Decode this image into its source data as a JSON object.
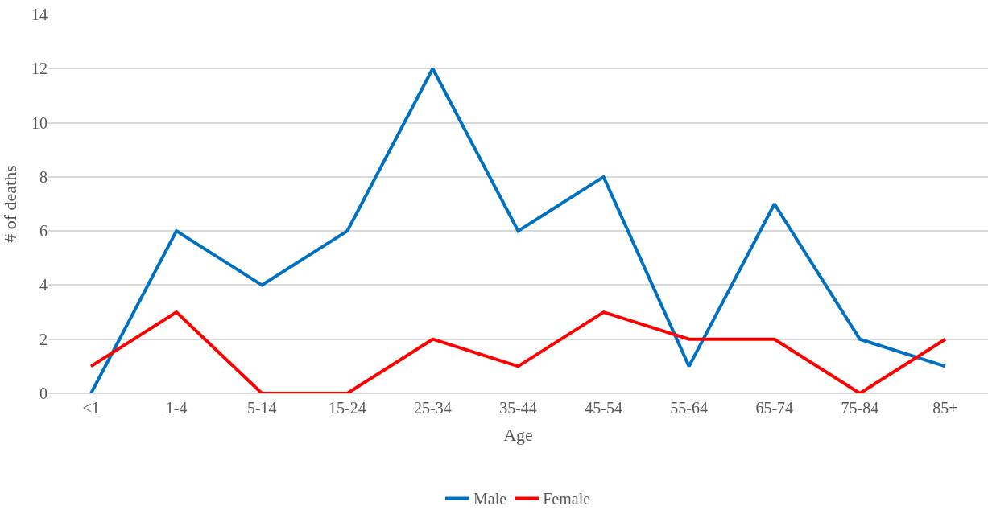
{
  "chart_data": {
    "type": "line",
    "xlabel": "Age",
    "ylabel": "# of deaths",
    "categories": [
      "<1",
      "1-4",
      "5-14",
      "15-24",
      "25-34",
      "35-44",
      "45-54",
      "55-64",
      "65-74",
      "75-84",
      "85+"
    ],
    "series": [
      {
        "name": "Male",
        "color": "#0070c0",
        "values": [
          0,
          6,
          4,
          6,
          12,
          6,
          8,
          1,
          7,
          2,
          1
        ]
      },
      {
        "name": "Female",
        "color": "#ff0000",
        "values": [
          1,
          3,
          0,
          0,
          2,
          1,
          3,
          2,
          2,
          0,
          2
        ]
      }
    ],
    "ylim": [
      0,
      14
    ],
    "yticks": [
      0,
      2,
      4,
      6,
      8,
      10,
      12,
      14
    ],
    "grid": "y",
    "legend": "bottom",
    "marker": "none",
    "line_style": "solid"
  }
}
